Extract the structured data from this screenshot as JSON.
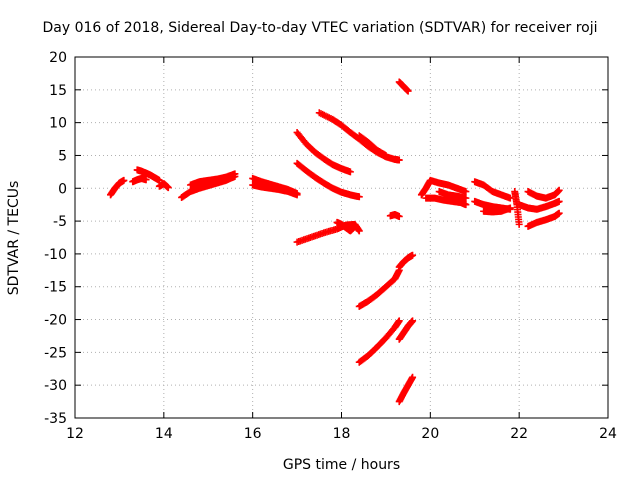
{
  "chart_data": {
    "type": "scatter",
    "title": "Day 016 of 2018, Sidereal Day-to-day VTEC variation (SDTVAR) for receiver roji",
    "xlabel": "GPS time / hours",
    "ylabel": "SDTVAR / TECUs",
    "xlim": [
      12,
      24
    ],
    "ylim": [
      -35,
      20
    ],
    "xticks": [
      "12",
      "14",
      "16",
      "18",
      "20",
      "22",
      "24"
    ],
    "yticks": [
      "20",
      "15",
      "10",
      "5",
      "0",
      "-5",
      "-10",
      "-15",
      "-20",
      "-25",
      "-30",
      "-35"
    ],
    "grid": true,
    "marker": "+",
    "color": "#ff0000",
    "series": [
      {
        "x": [
          12.8,
          12.9,
          13.0,
          13.1
        ],
        "y": [
          -1.0,
          0.0,
          0.8,
          1.2
        ]
      },
      {
        "x": [
          13.4,
          13.5,
          13.6,
          13.7,
          13.8,
          13.9
        ],
        "y": [
          2.8,
          2.6,
          2.3,
          2.0,
          1.6,
          1.2
        ]
      },
      {
        "x": [
          13.3,
          13.4,
          13.5,
          13.6
        ],
        "y": [
          1.0,
          1.3,
          1.5,
          1.3
        ]
      },
      {
        "x": [
          13.9,
          14.0,
          14.1
        ],
        "y": [
          0.3,
          0.7,
          0.1
        ]
      },
      {
        "x": [
          14.4,
          14.6,
          14.8,
          15.0,
          15.2,
          15.4,
          15.6
        ],
        "y": [
          -1.4,
          -0.5,
          0.0,
          0.4,
          0.8,
          1.2,
          1.8
        ]
      },
      {
        "x": [
          14.6,
          14.8,
          15.0,
          15.2,
          15.4,
          15.6
        ],
        "y": [
          0.5,
          1.0,
          1.2,
          1.4,
          1.7,
          2.2
        ]
      },
      {
        "x": [
          16.0,
          16.2,
          16.4,
          16.6,
          16.8,
          17.0
        ],
        "y": [
          1.5,
          1.0,
          0.6,
          0.2,
          -0.2,
          -0.8
        ]
      },
      {
        "x": [
          16.0,
          16.2,
          16.4,
          16.6,
          16.8,
          17.0
        ],
        "y": [
          0.5,
          0.2,
          0.0,
          -0.2,
          -0.5,
          -1.0
        ]
      },
      {
        "x": [
          17.0,
          17.2,
          17.4,
          17.6,
          17.8,
          18.0,
          18.2
        ],
        "y": [
          8.5,
          6.8,
          5.5,
          4.5,
          3.6,
          3.0,
          2.5
        ]
      },
      {
        "x": [
          17.0,
          17.2,
          17.4,
          17.6,
          17.8,
          18.0,
          18.2,
          18.4
        ],
        "y": [
          3.8,
          2.7,
          1.7,
          0.8,
          0.0,
          -0.6,
          -1.0,
          -1.3
        ]
      },
      {
        "x": [
          17.5,
          17.8,
          18.0,
          18.2,
          18.4,
          18.6,
          18.8,
          19.0,
          19.2,
          19.3
        ],
        "y": [
          11.5,
          10.5,
          9.6,
          8.5,
          7.5,
          6.4,
          5.5,
          4.8,
          4.4,
          4.3
        ]
      },
      {
        "x": [
          18.4,
          18.6,
          18.8,
          19.0
        ],
        "y": [
          8.0,
          7.0,
          5.8,
          5.0
        ]
      },
      {
        "x": [
          19.3,
          19.4,
          19.5
        ],
        "y": [
          16.2,
          15.5,
          14.8
        ]
      },
      {
        "x": [
          17.0,
          17.3,
          17.6,
          17.9,
          18.1,
          18.3,
          18.4
        ],
        "y": [
          -8.2,
          -7.5,
          -6.8,
          -6.2,
          -5.6,
          -5.5,
          -6.5
        ]
      },
      {
        "x": [
          17.9,
          18.0,
          18.1,
          18.2,
          18.3
        ],
        "y": [
          -5.2,
          -5.5,
          -6.0,
          -6.5,
          -5.8
        ]
      },
      {
        "x": [
          19.1,
          19.2,
          19.3
        ],
        "y": [
          -4.2,
          -4.0,
          -4.3
        ]
      },
      {
        "x": [
          18.4,
          18.6,
          18.8,
          19.0,
          19.2,
          19.3
        ],
        "y": [
          -18.0,
          -17.2,
          -16.2,
          -15.0,
          -13.8,
          -12.5
        ]
      },
      {
        "x": [
          19.3,
          19.4,
          19.5,
          19.6
        ],
        "y": [
          -12.0,
          -11.2,
          -10.6,
          -10.2
        ]
      },
      {
        "x": [
          18.4,
          18.6,
          18.8,
          19.0,
          19.2,
          19.3
        ],
        "y": [
          -26.5,
          -25.5,
          -24.2,
          -22.8,
          -21.2,
          -20.2
        ]
      },
      {
        "x": [
          19.3,
          19.4,
          19.5,
          19.6
        ],
        "y": [
          -23.0,
          -22.0,
          -21.0,
          -20.2
        ]
      },
      {
        "x": [
          19.3,
          19.4,
          19.5,
          19.6
        ],
        "y": [
          -32.5,
          -31.2,
          -30.0,
          -28.8
        ]
      },
      {
        "x": [
          19.8,
          19.9,
          20.0,
          20.2,
          20.4,
          20.6,
          20.8
        ],
        "y": [
          -1.0,
          0.0,
          1.2,
          0.8,
          0.5,
          0.0,
          -0.5
        ]
      },
      {
        "x": [
          19.9,
          20.1,
          20.3,
          20.5,
          20.7,
          20.8
        ],
        "y": [
          -1.5,
          -1.5,
          -1.8,
          -2.0,
          -2.2,
          -2.5
        ]
      },
      {
        "x": [
          20.2,
          20.4,
          20.6,
          20.8
        ],
        "y": [
          -0.5,
          -1.0,
          -1.2,
          -1.5
        ]
      },
      {
        "x": [
          21.0,
          21.2,
          21.4,
          21.6,
          21.8
        ],
        "y": [
          1.0,
          0.5,
          -0.5,
          -1.0,
          -1.5
        ]
      },
      {
        "x": [
          21.0,
          21.2,
          21.4,
          21.6,
          21.8
        ],
        "y": [
          -2.0,
          -2.5,
          -2.8,
          -3.0,
          -3.2
        ]
      },
      {
        "x": [
          21.2,
          21.4,
          21.6,
          21.8
        ],
        "y": [
          -3.5,
          -3.6,
          -3.5,
          -3.0
        ]
      },
      {
        "x": [
          21.9,
          21.95,
          22.0
        ],
        "y": [
          -0.5,
          -2.5,
          -5.5
        ]
      },
      {
        "x": [
          22.2,
          22.4,
          22.6,
          22.8,
          22.9
        ],
        "y": [
          -0.5,
          -1.2,
          -1.5,
          -1.0,
          -0.3
        ]
      },
      {
        "x": [
          22.0,
          22.2,
          22.4,
          22.6,
          22.8,
          22.9
        ],
        "y": [
          -2.5,
          -3.0,
          -3.2,
          -2.8,
          -2.3,
          -2.0
        ]
      },
      {
        "x": [
          22.2,
          22.4,
          22.6,
          22.8,
          22.9
        ],
        "y": [
          -5.8,
          -5.2,
          -4.8,
          -4.3,
          -3.8
        ]
      }
    ]
  }
}
